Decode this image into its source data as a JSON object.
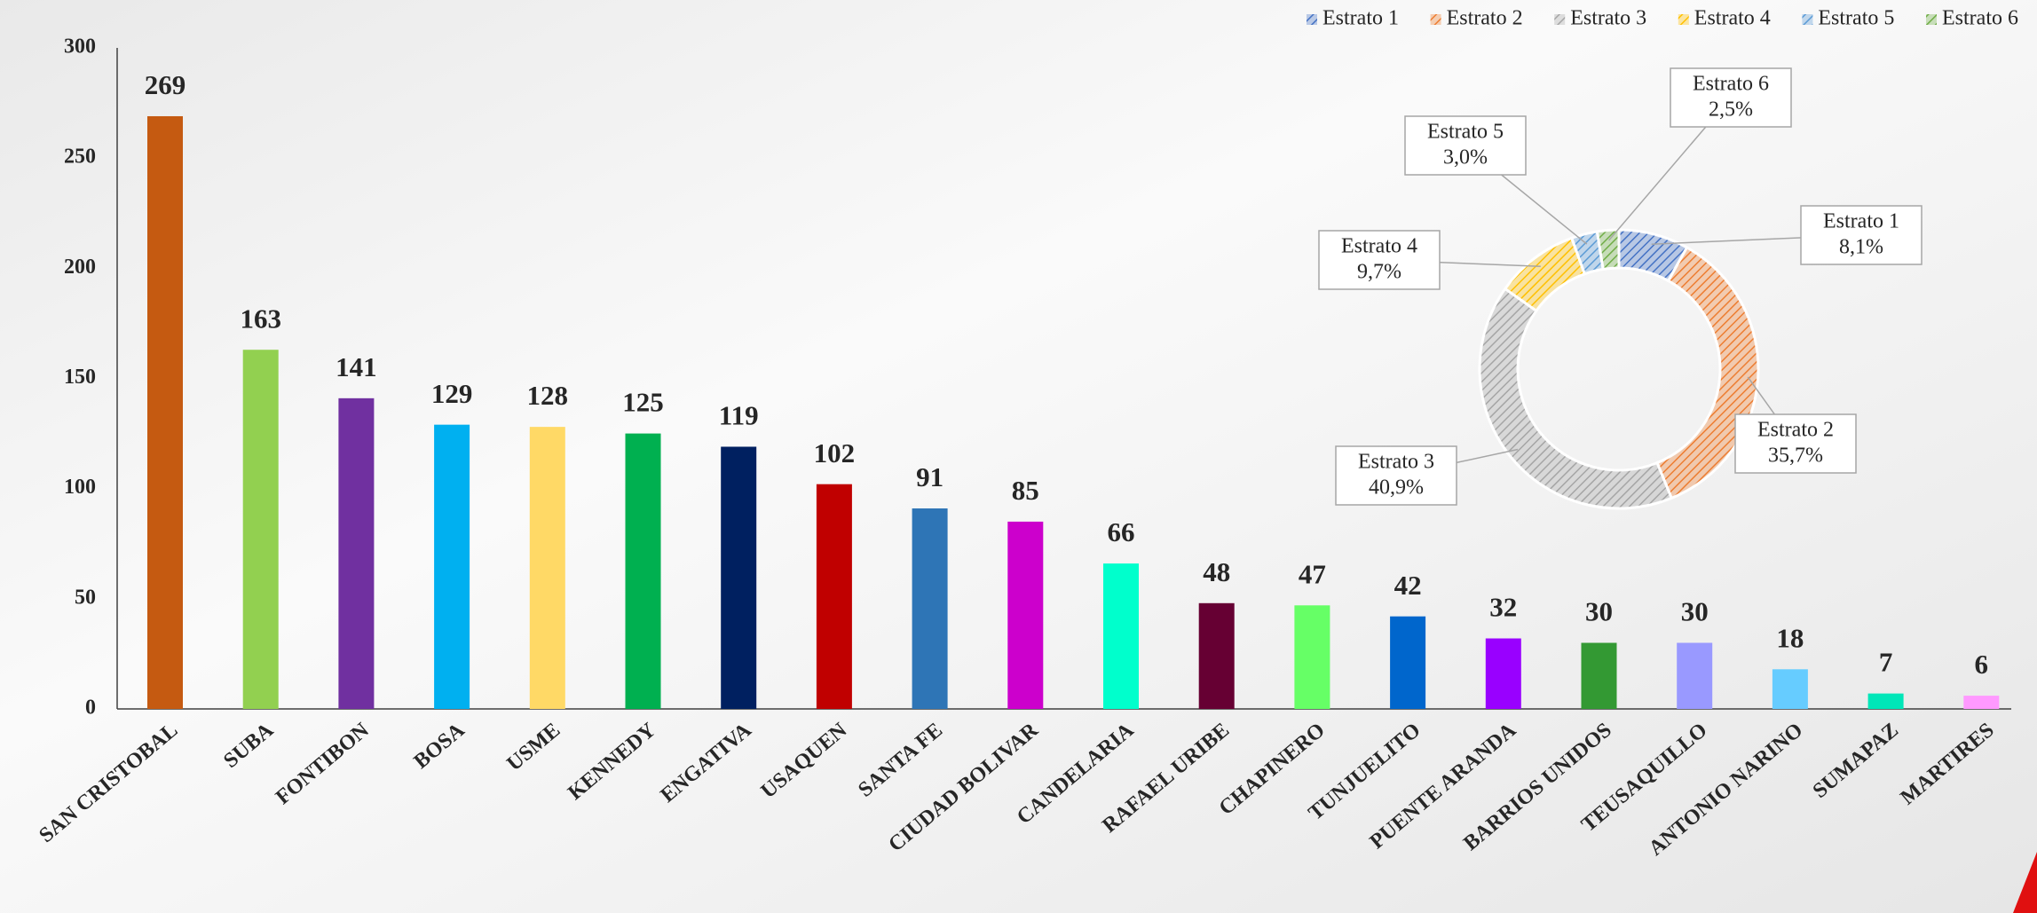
{
  "chart_data": [
    {
      "type": "bar",
      "categories": [
        "SAN CRISTOBAL",
        "SUBA",
        "FONTIBON",
        "BOSA",
        "USME",
        "KENNEDY",
        "ENGATIVA",
        "USAQUEN",
        "SANTA FE",
        "CIUDAD BOLIVAR",
        "CANDELARIA",
        "RAFAEL URIBE",
        "CHAPINERO",
        "TUNJUELITO",
        "PUENTE ARANDA",
        "BARRIOS UNIDOS",
        "TEUSAQUILLO",
        "ANTONIO NARINO",
        "SUMAPAZ",
        "MARTIRES"
      ],
      "values": [
        269,
        163,
        141,
        129,
        128,
        125,
        119,
        102,
        91,
        85,
        66,
        48,
        47,
        42,
        32,
        30,
        30,
        18,
        7,
        6
      ],
      "colors": [
        "#c55a11",
        "#92d050",
        "#7030a0",
        "#00b0f0",
        "#ffd966",
        "#00b050",
        "#002060",
        "#c00000",
        "#2e75b6",
        "#cc00cc",
        "#00ffcc",
        "#660033",
        "#66ff66",
        "#0066cc",
        "#9900ff",
        "#339933",
        "#9999ff",
        "#66ccff",
        "#00e6b8",
        "#ff99ff"
      ],
      "ylim": [
        0,
        300
      ],
      "yticks": [
        0,
        50,
        100,
        150,
        200,
        250,
        300
      ],
      "grid": false
    },
    {
      "type": "donut",
      "categories": [
        "Estrato 1",
        "Estrato 2",
        "Estrato 3",
        "Estrato 4",
        "Estrato 5",
        "Estrato 6"
      ],
      "values": [
        8.1,
        35.7,
        40.9,
        9.7,
        3.0,
        2.5
      ],
      "value_labels": [
        "8,1%",
        "35,7%",
        "40,9%",
        "9,7%",
        "3,0%",
        "2,5%"
      ],
      "colors": [
        "#4472c4",
        "#ed7d31",
        "#a5a5a5",
        "#ffc000",
        "#5b9bd5",
        "#70ad47"
      ],
      "legend": "top-right"
    }
  ]
}
